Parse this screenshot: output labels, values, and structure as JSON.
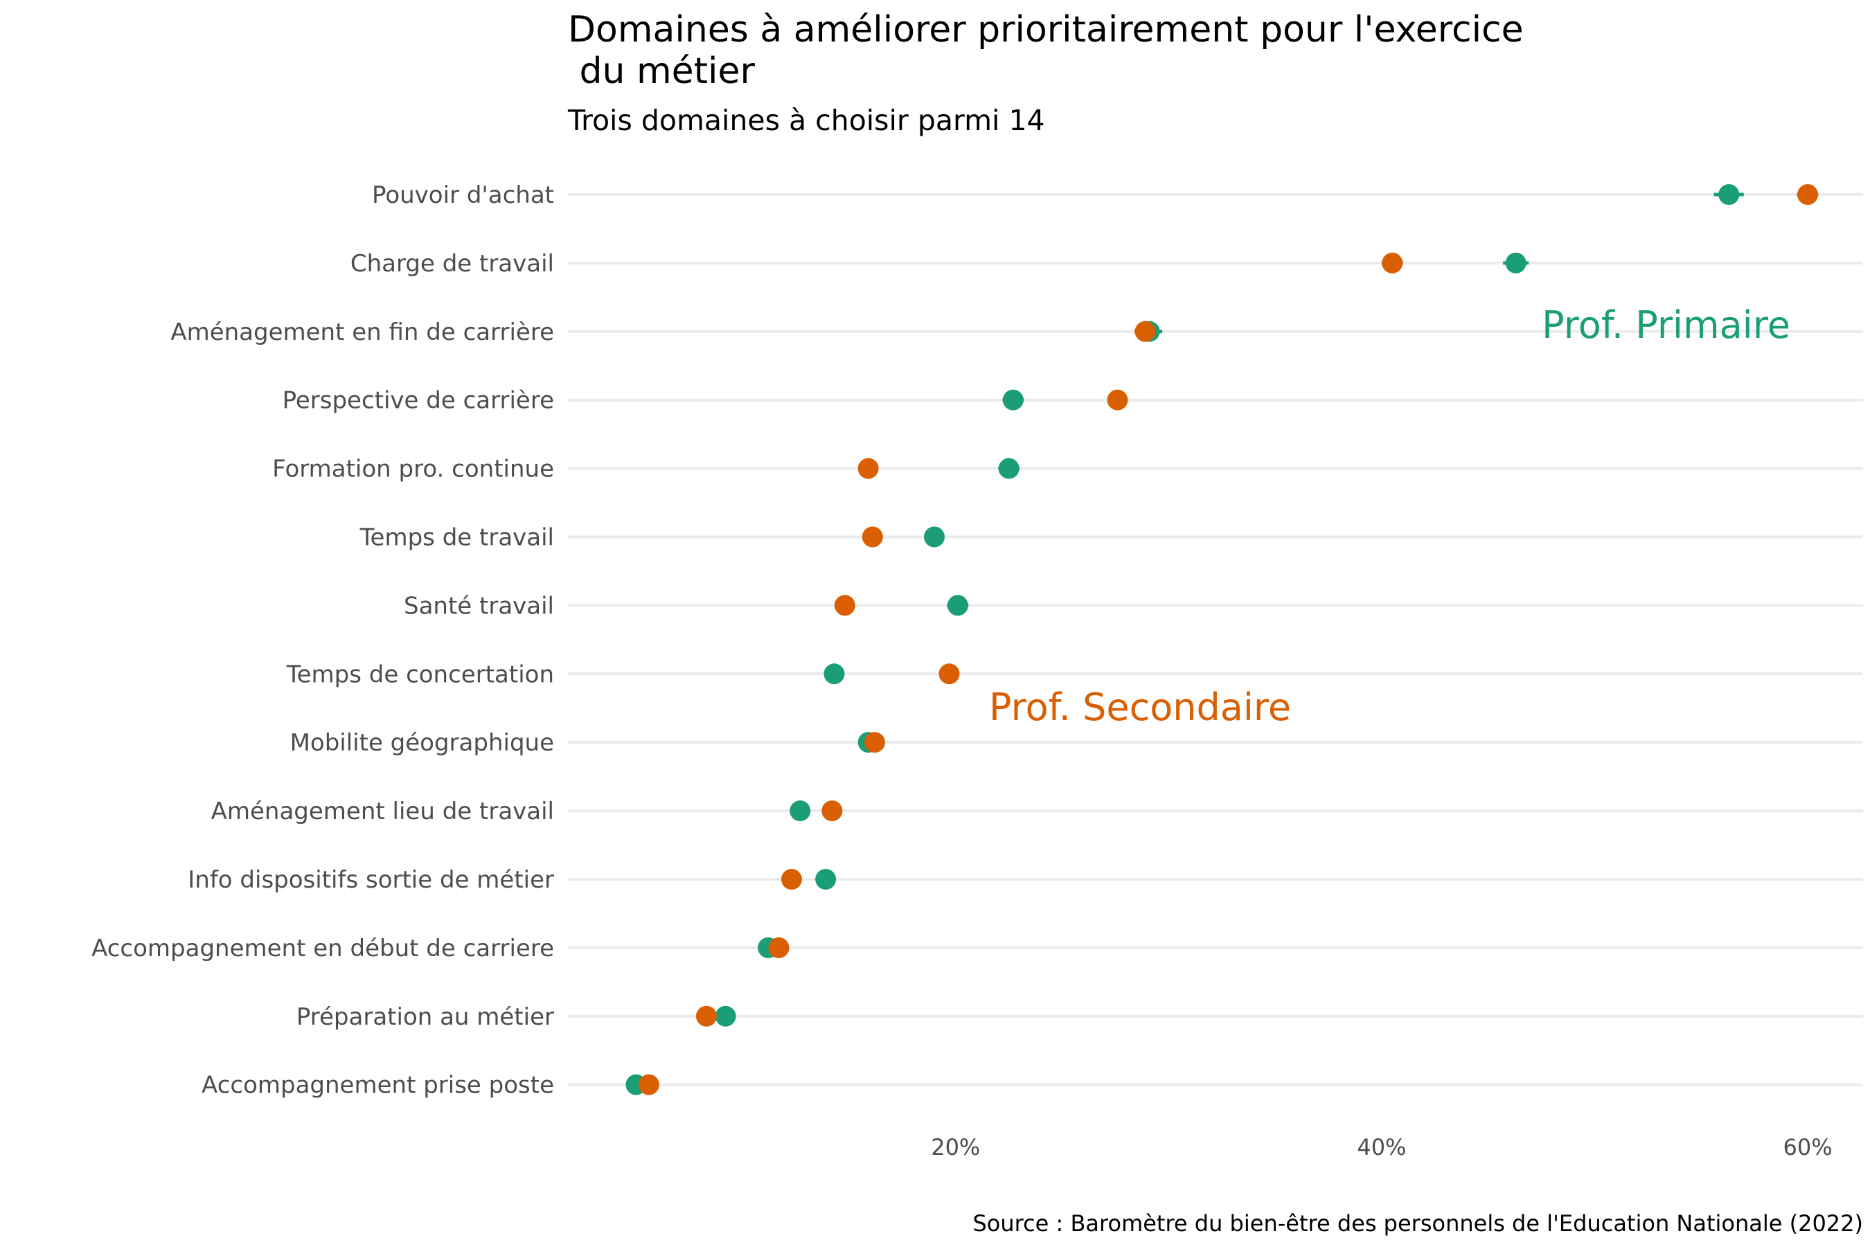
{
  "chart_data": {
    "type": "scatter",
    "title_lines": [
      "Domaines à améliorer prioritairement pour l'exercice",
      " du métier"
    ],
    "subtitle": "Trois domaines à choisir parmi 14",
    "caption": "Source : Baromètre du bien-être des personnels de l'Education Nationale (2022)",
    "xlabel": "",
    "ylabel": "",
    "xlim": [
      1.8,
      62.6
    ],
    "x_ticks": [
      20,
      40,
      60
    ],
    "x_tick_labels": [
      "20%",
      "40%",
      "60%"
    ],
    "categories": [
      "Pouvoir d'achat",
      "Charge de travail",
      "Aménagement en fin de carrière",
      "Perspective de carrière",
      "Formation pro. continue",
      "Temps de travail",
      "Santé travail",
      "Temps de concertation",
      "Mobilite géographique",
      "Aménagement lieu de travail",
      "Info dispositifs sortie de métier",
      "Accompagnement en début de carriere",
      "Préparation au métier",
      "Accompagnement prise poste"
    ],
    "series": [
      {
        "name": "Prof. Primaire",
        "color": "#1b9e77",
        "values": [
          56.3,
          46.3,
          29.1,
          22.7,
          22.5,
          19.0,
          20.1,
          14.3,
          15.9,
          12.7,
          13.9,
          11.2,
          9.2,
          5.0
        ],
        "error_half_width": [
          0.7,
          0.6,
          0.6,
          0.5,
          0.5,
          0.4,
          0.5,
          0.3,
          0.4,
          0.3,
          0.3,
          0.3,
          0.3,
          0.2
        ]
      },
      {
        "name": "Prof. Secondaire",
        "color": "#d95f02",
        "values": [
          60.0,
          40.5,
          28.9,
          27.6,
          15.9,
          16.1,
          14.8,
          19.7,
          16.2,
          14.2,
          12.3,
          11.7,
          8.3,
          5.6
        ],
        "error_half_width": [
          0.5,
          0.5,
          0.5,
          0.4,
          0.4,
          0.4,
          0.4,
          0.4,
          0.3,
          0.3,
          0.3,
          0.3,
          0.2,
          0.2
        ]
      }
    ],
    "annotations": [
      {
        "text": "Prof. Primaire",
        "series": 0
      },
      {
        "text": "Prof. Secondaire",
        "series": 1
      }
    ],
    "grid": "horizontal-major",
    "legend": "none"
  }
}
